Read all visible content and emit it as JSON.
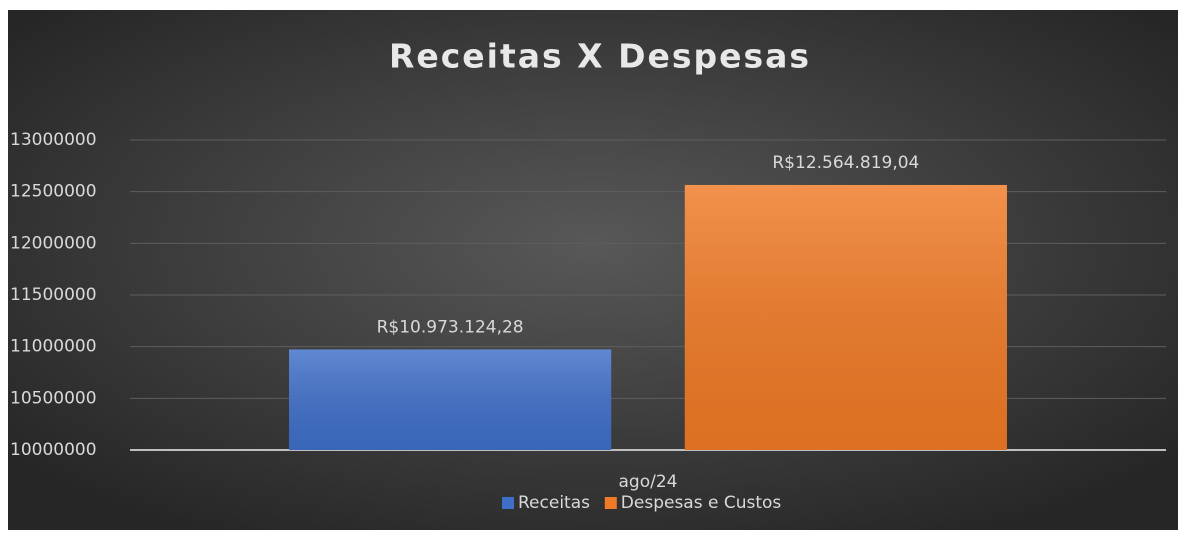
{
  "chart_data": {
    "type": "bar",
    "title": "Receitas X Despesas",
    "categories": [
      "ago/24"
    ],
    "series": [
      {
        "name": "Receitas",
        "color": "#3f6fc9",
        "values": [
          10973124.28
        ],
        "value_labels": [
          "R$10.973.124,28"
        ]
      },
      {
        "name": "Despesas e Custos",
        "color": "#f07a25",
        "values": [
          12564819.04
        ],
        "value_labels": [
          "R$12.564.819,04"
        ]
      }
    ],
    "ylim": [
      10000000,
      13000000
    ],
    "yticks": [
      10000000,
      10500000,
      11000000,
      11500000,
      12000000,
      12500000,
      13000000
    ],
    "grid": true,
    "legend": "bottom"
  }
}
